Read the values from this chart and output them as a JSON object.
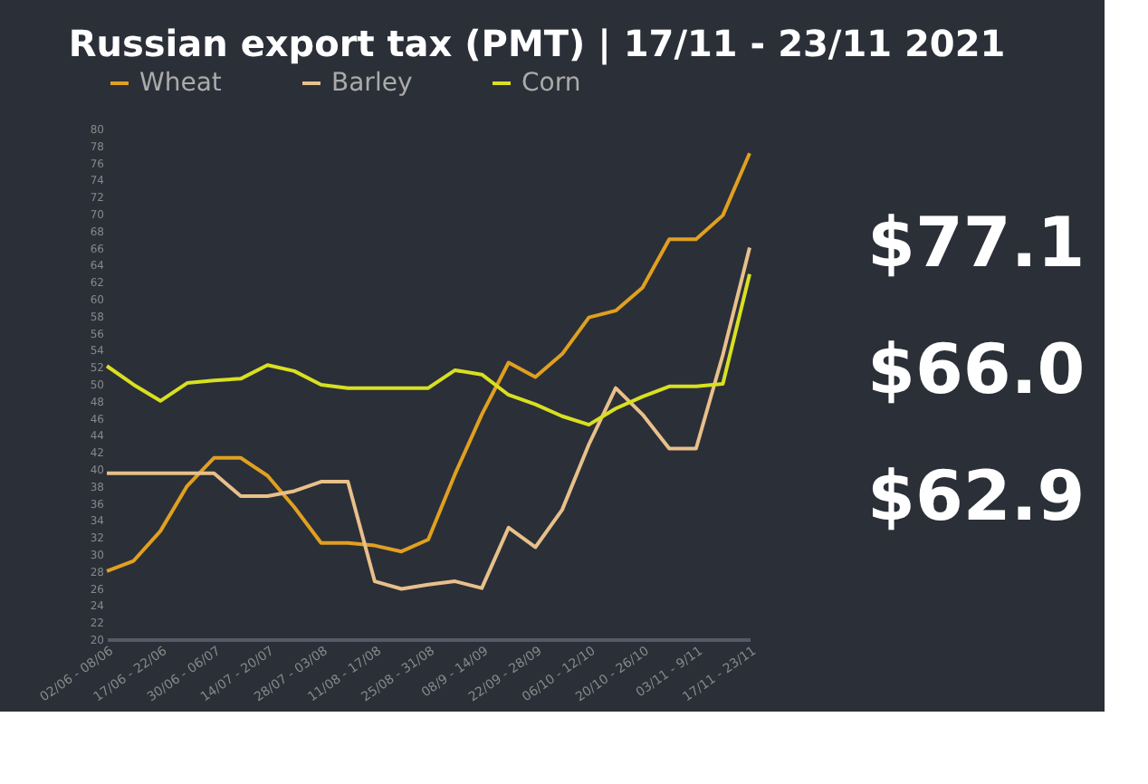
{
  "chart_data": {
    "type": "line",
    "title": "Russian export tax (PMT) | 17/11 - 23/11 2021",
    "categories": [
      "02/06 - 08/06",
      null,
      "17/06 - 22/06",
      null,
      "30/06 - 06/07",
      null,
      "14/07 - 20/07",
      null,
      "28/07 - 03/08",
      null,
      "11/08 - 17/08",
      null,
      "25/08 - 31/08",
      null,
      "08/9 - 14/09",
      null,
      "22/09 - 28/09",
      null,
      "06/10 - 12/10",
      null,
      "20/10 - 26/10",
      null,
      "03/11 - 9/11",
      null,
      "17/11 - 23/11"
    ],
    "series": [
      {
        "name": "Wheat",
        "color": "#e0a020",
        "values": [
          28.0,
          29.2,
          32.7,
          38.0,
          41.3,
          41.3,
          39.2,
          35.5,
          31.3,
          31.3,
          31.0,
          30.3,
          31.7,
          39.4,
          46.4,
          52.5,
          50.8,
          53.5,
          57.8,
          58.6,
          61.3,
          67.0,
          67.0,
          69.8,
          77.1
        ]
      },
      {
        "name": "Barley",
        "color": "#e8c08a",
        "values": [
          39.5,
          39.5,
          39.5,
          39.5,
          39.5,
          36.8,
          36.8,
          37.4,
          38.5,
          38.5,
          26.8,
          25.9,
          26.4,
          26.8,
          26.0,
          33.1,
          30.8,
          35.2,
          42.9,
          49.5,
          46.4,
          42.4,
          42.4,
          53.4,
          66.0
        ]
      },
      {
        "name": "Corn",
        "color": "#d8e020",
        "values": [
          52.1,
          49.9,
          48.0,
          50.1,
          50.4,
          50.6,
          52.2,
          51.5,
          49.9,
          49.5,
          49.5,
          49.5,
          49.5,
          51.6,
          51.1,
          48.7,
          47.6,
          46.2,
          45.2,
          47.1,
          48.5,
          49.7,
          49.7,
          50.0,
          62.9
        ]
      }
    ],
    "ylim": [
      20,
      80
    ],
    "yticks": [
      20,
      22,
      24,
      26,
      28,
      30,
      32,
      34,
      36,
      38,
      40,
      42,
      44,
      46,
      48,
      50,
      52,
      54,
      56,
      58,
      60,
      62,
      64,
      66,
      68,
      70,
      72,
      74,
      76,
      78,
      80
    ],
    "grid": false,
    "legend": "top",
    "marker": "none",
    "line_style": "solid",
    "annotations": [
      "$77.1",
      "$66.0",
      "$62.9"
    ]
  }
}
